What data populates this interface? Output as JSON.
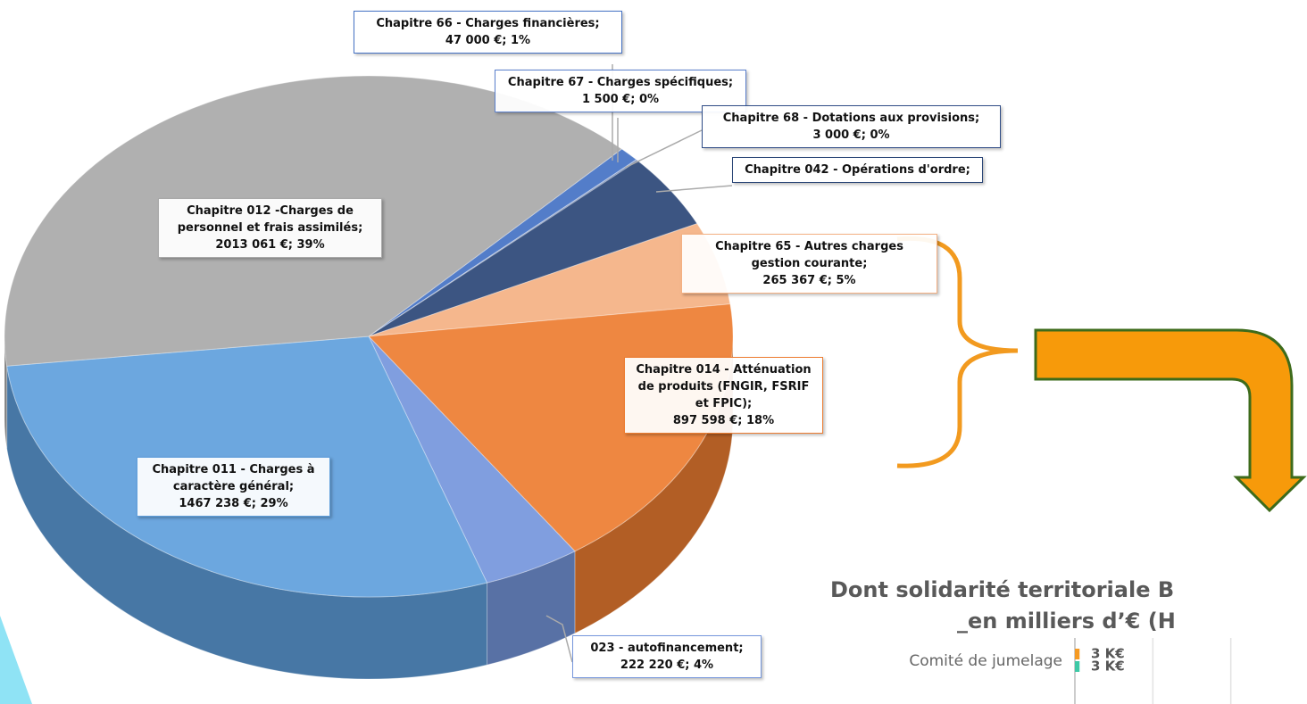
{
  "chart_data": [
    {
      "type": "pie3d",
      "categories": [
        "Chapitre 66 - Charges financières;",
        "Chapitre 67 - Charges spécifiques;",
        "Chapitre 68 - Dotations aux provisions;",
        "Chapitre 042 - Opérations d'ordre;",
        "Chapitre 65 - Autres charges gestion courante;",
        "Chapitre 014 - Atténuation de produits (FNGIR, FSRIF et FPIC);",
        "023 - autofinancement;",
        "Chapitre 011 - Charges à caractère général;",
        "Chapitre 012 -Charges de personnel et frais assimilés;"
      ],
      "values": [
        47000,
        1500,
        3000,
        240000,
        265367,
        897598,
        222220,
        1467238,
        2013061
      ],
      "value_labels": [
        "47 000 €;",
        "1 500 €;",
        "3 000 €;",
        null,
        "265 367 €;",
        "897 598 €;",
        "222 220 €;",
        "1467 238 €;",
        "2013 061 €;"
      ],
      "percents": [
        1,
        0,
        0,
        5,
        5,
        18,
        4,
        29,
        39
      ],
      "percent_labels": [
        "1%",
        "0%",
        "0%",
        null,
        "5%",
        "18%",
        "4%",
        "29%",
        "39%"
      ],
      "colors": [
        "#4472c4",
        "#5a7fcc",
        "#2f4c86",
        "#2b4677",
        "#f4b183",
        "#ed7d31",
        "#7596dc",
        "#5f9fdc",
        "#a9a9a9"
      ]
    },
    {
      "type": "hbar",
      "title": "Dont solidarité territoriale B",
      "subtitle": "_en milliers d’€ (H",
      "categories": [
        "Comité de jumelage"
      ],
      "series": [
        {
          "color": "#f59a23",
          "values": [
            3
          ],
          "value_labels": [
            "3 K€"
          ]
        },
        {
          "color": "#3ec9a6",
          "values": [
            3
          ],
          "value_labels": [
            "3 K€"
          ]
        }
      ],
      "xlim": [
        0,
        150
      ],
      "xticks": [
        0,
        50,
        100,
        150
      ],
      "grid": true
    }
  ]
}
